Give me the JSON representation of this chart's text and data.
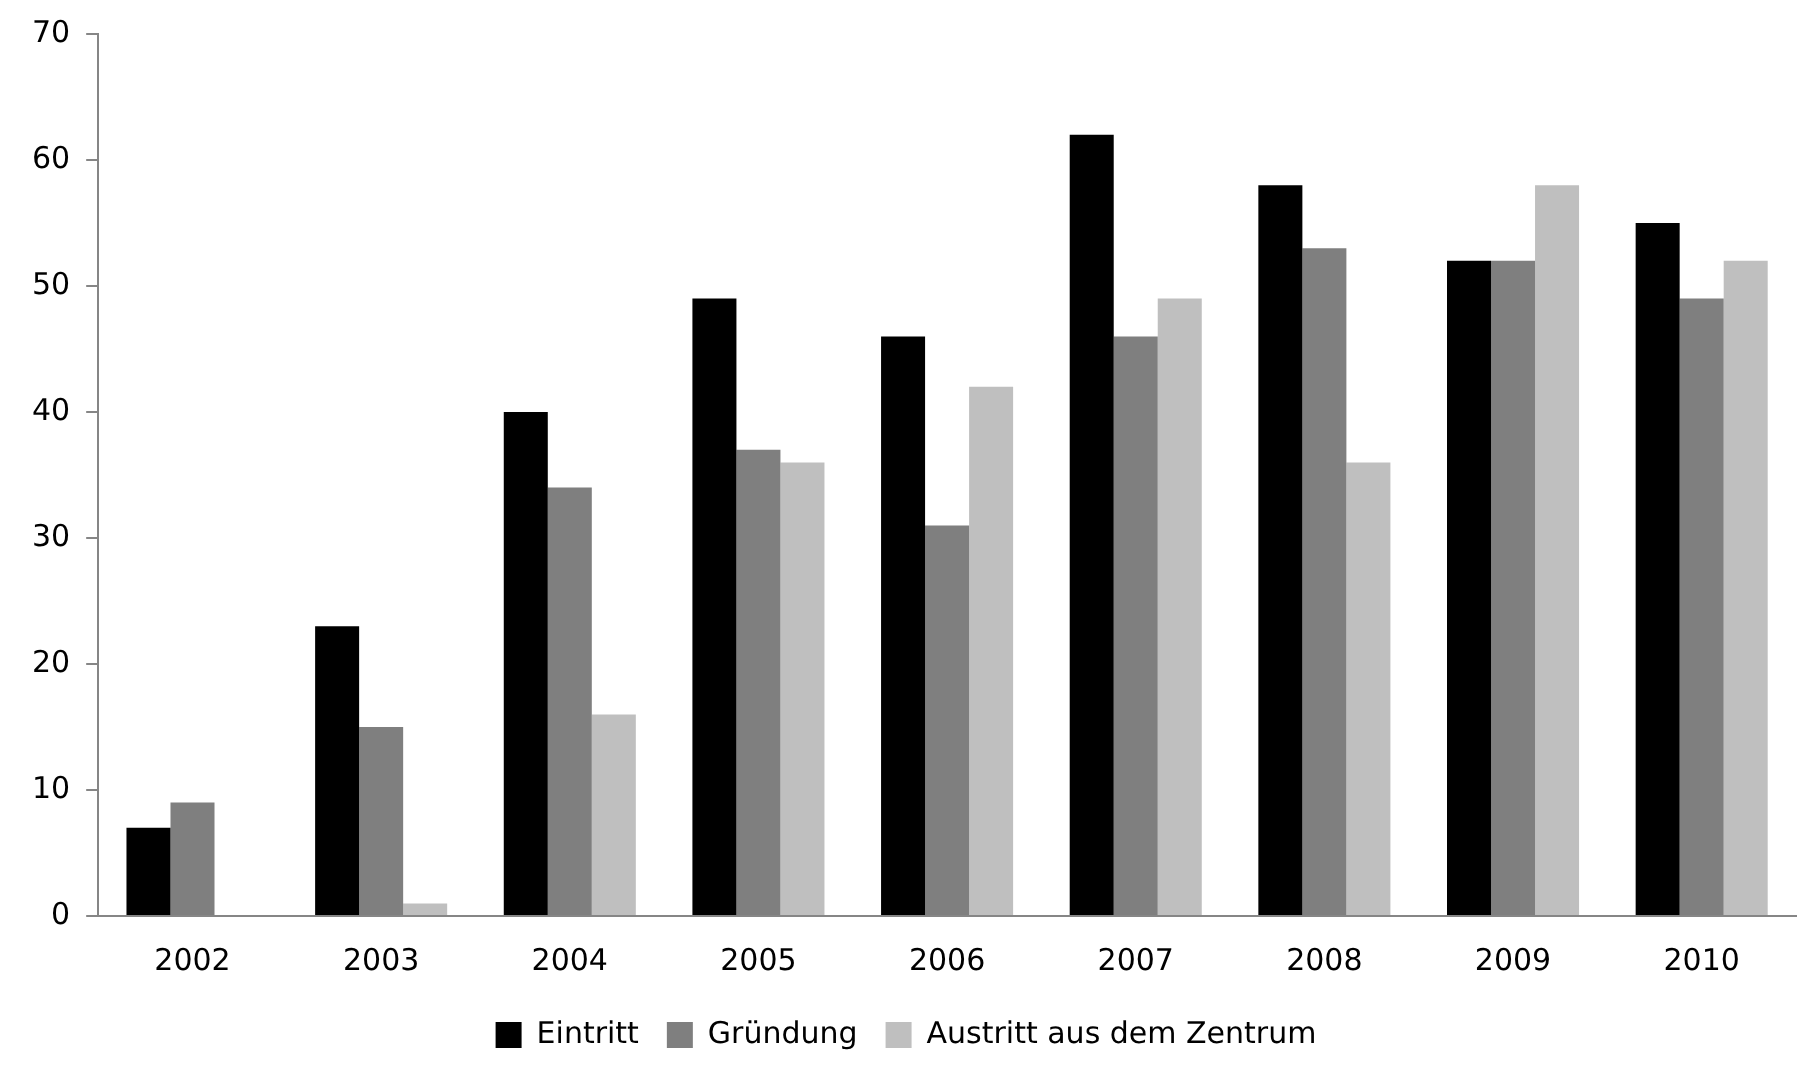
{
  "chart_data": {
    "type": "bar",
    "categories": [
      "2002",
      "2003",
      "2004",
      "2005",
      "2006",
      "2007",
      "2008",
      "2009",
      "2010"
    ],
    "series": [
      {
        "name": "Eintritt",
        "color": "#000000",
        "values": [
          7,
          23,
          40,
          49,
          46,
          62,
          58,
          52,
          55
        ]
      },
      {
        "name": "Gründung",
        "color": "#7f7f7f",
        "values": [
          9,
          15,
          34,
          37,
          31,
          46,
          53,
          52,
          49
        ]
      },
      {
        "name": "Austritt aus dem Zentrum",
        "color": "#bfbfbf",
        "values": [
          null,
          1,
          16,
          36,
          42,
          49,
          36,
          58,
          52
        ]
      }
    ],
    "ylim": [
      0,
      70
    ],
    "yticks": [
      0,
      10,
      20,
      30,
      40,
      50,
      60,
      70
    ],
    "grid": false,
    "legend": "bottom"
  }
}
